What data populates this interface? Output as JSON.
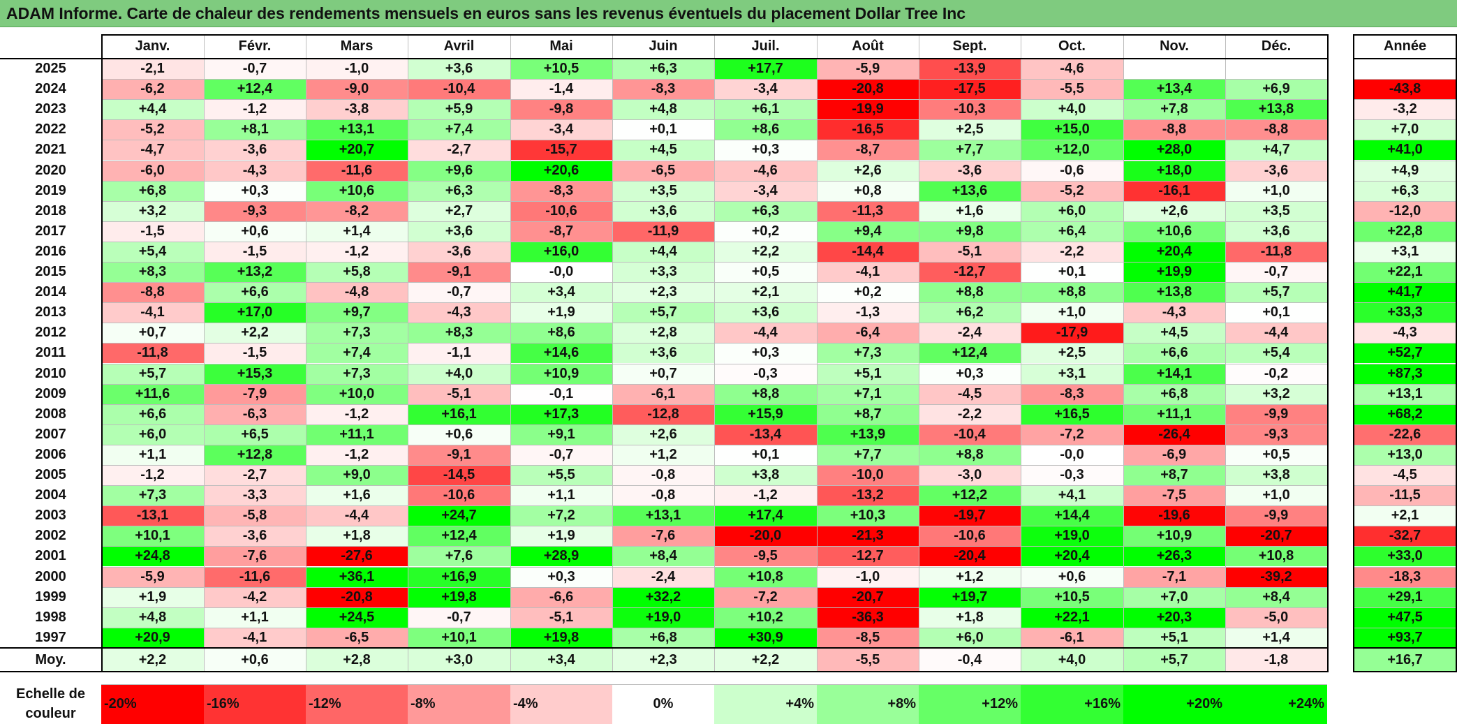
{
  "title": "ADAM Informe. Carte de chaleur des rendements mensuels en euros sans les revenus éventuels du placement Dollar Tree Inc",
  "colors": {
    "title_bg": "#7fcb7f",
    "negative": "#ff0000",
    "positive": "#00ff00",
    "neutral": "#ffffff"
  },
  "chart_data": {
    "type": "heatmap",
    "columns": [
      "Janv.",
      "Févr.",
      "Mars",
      "Avril",
      "Mai",
      "Juin",
      "Juil.",
      "Août",
      "Sept.",
      "Oct.",
      "Nov.",
      "Déc."
    ],
    "annual_header": "Année",
    "rows": [
      {
        "year": "2025",
        "values": [
          "-2,1",
          "-0,7",
          "-1,0",
          "+3,6",
          "+10,5",
          "+6,3",
          "+17,7",
          "-5,9",
          "-13,9",
          "-4,6",
          "",
          ""
        ],
        "annual": ""
      },
      {
        "year": "2024",
        "values": [
          "-6,2",
          "+12,4",
          "-9,0",
          "-10,4",
          "-1,4",
          "-8,3",
          "-3,4",
          "-20,8",
          "-17,5",
          "-5,5",
          "+13,4",
          "+6,9"
        ],
        "annual": "-43,8"
      },
      {
        "year": "2023",
        "values": [
          "+4,4",
          "-1,2",
          "-3,8",
          "+5,9",
          "-9,8",
          "+4,8",
          "+6,1",
          "-19,9",
          "-10,3",
          "+4,0",
          "+7,8",
          "+13,8"
        ],
        "annual": "-3,2"
      },
      {
        "year": "2022",
        "values": [
          "-5,2",
          "+8,1",
          "+13,1",
          "+7,4",
          "-3,4",
          "+0,1",
          "+8,6",
          "-16,5",
          "+2,5",
          "+15,0",
          "-8,8",
          "-8,8"
        ],
        "annual": "+7,0"
      },
      {
        "year": "2021",
        "values": [
          "-4,7",
          "-3,6",
          "+20,7",
          "-2,7",
          "-15,7",
          "+4,5",
          "+0,3",
          "-8,7",
          "+7,7",
          "+12,0",
          "+28,0",
          "+4,7"
        ],
        "annual": "+41,0"
      },
      {
        "year": "2020",
        "values": [
          "-6,0",
          "-4,3",
          "-11,6",
          "+9,6",
          "+20,6",
          "-6,5",
          "-4,6",
          "+2,6",
          "-3,6",
          "-0,6",
          "+18,0",
          "-3,6"
        ],
        "annual": "+4,9"
      },
      {
        "year": "2019",
        "values": [
          "+6,8",
          "+0,3",
          "+10,6",
          "+6,3",
          "-8,3",
          "+3,5",
          "-3,4",
          "+0,8",
          "+13,6",
          "-5,2",
          "-16,1",
          "+1,0"
        ],
        "annual": "+6,3"
      },
      {
        "year": "2018",
        "values": [
          "+3,2",
          "-9,3",
          "-8,2",
          "+2,7",
          "-10,6",
          "+3,6",
          "+6,3",
          "-11,3",
          "+1,6",
          "+6,0",
          "+2,6",
          "+3,5"
        ],
        "annual": "-12,0"
      },
      {
        "year": "2017",
        "values": [
          "-1,5",
          "+0,6",
          "+1,4",
          "+3,6",
          "-8,7",
          "-11,9",
          "+0,2",
          "+9,4",
          "+9,8",
          "+6,4",
          "+10,6",
          "+3,6"
        ],
        "annual": "+22,8"
      },
      {
        "year": "2016",
        "values": [
          "+5,4",
          "-1,5",
          "-1,2",
          "-3,6",
          "+16,0",
          "+4,4",
          "+2,2",
          "-14,4",
          "-5,1",
          "-2,2",
          "+20,4",
          "-11,8"
        ],
        "annual": "+3,1"
      },
      {
        "year": "2015",
        "values": [
          "+8,3",
          "+13,2",
          "+5,8",
          "-9,1",
          "-0,0",
          "+3,3",
          "+0,5",
          "-4,1",
          "-12,7",
          "+0,1",
          "+19,9",
          "-0,7"
        ],
        "annual": "+22,1"
      },
      {
        "year": "2014",
        "values": [
          "-8,8",
          "+6,6",
          "-4,8",
          "-0,7",
          "+3,4",
          "+2,3",
          "+2,1",
          "+0,2",
          "+8,8",
          "+8,8",
          "+13,8",
          "+5,7"
        ],
        "annual": "+41,7"
      },
      {
        "year": "2013",
        "values": [
          "-4,1",
          "+17,0",
          "+9,7",
          "-4,3",
          "+1,9",
          "+5,7",
          "+3,6",
          "-1,3",
          "+6,2",
          "+1,0",
          "-4,3",
          "+0,1"
        ],
        "annual": "+33,3"
      },
      {
        "year": "2012",
        "values": [
          "+0,7",
          "+2,2",
          "+7,3",
          "+8,3",
          "+8,6",
          "+2,8",
          "-4,4",
          "-6,4",
          "-2,4",
          "-17,9",
          "+4,5",
          "-4,4"
        ],
        "annual": "-4,3"
      },
      {
        "year": "2011",
        "values": [
          "-11,8",
          "-1,5",
          "+7,4",
          "-1,1",
          "+14,6",
          "+3,6",
          "+0,3",
          "+7,3",
          "+12,4",
          "+2,5",
          "+6,6",
          "+5,4"
        ],
        "annual": "+52,7"
      },
      {
        "year": "2010",
        "values": [
          "+5,7",
          "+15,3",
          "+7,3",
          "+4,0",
          "+10,9",
          "+0,7",
          "-0,3",
          "+5,1",
          "+0,3",
          "+3,1",
          "+14,1",
          "-0,2"
        ],
        "annual": "+87,3"
      },
      {
        "year": "2009",
        "values": [
          "+11,6",
          "-7,9",
          "+10,0",
          "-5,1",
          "-0,1",
          "-6,1",
          "+8,8",
          "+7,1",
          "-4,5",
          "-8,3",
          "+6,8",
          "+3,2"
        ],
        "annual": "+13,1"
      },
      {
        "year": "2008",
        "values": [
          "+6,6",
          "-6,3",
          "-1,2",
          "+16,1",
          "+17,3",
          "-12,8",
          "+15,9",
          "+8,7",
          "-2,2",
          "+16,5",
          "+11,1",
          "-9,9"
        ],
        "annual": "+68,2"
      },
      {
        "year": "2007",
        "values": [
          "+6,0",
          "+6,5",
          "+11,1",
          "+0,6",
          "+9,1",
          "+2,6",
          "-13,4",
          "+13,9",
          "-10,4",
          "-7,2",
          "-26,4",
          "-9,3"
        ],
        "annual": "-22,6"
      },
      {
        "year": "2006",
        "values": [
          "+1,1",
          "+12,8",
          "-1,2",
          "-9,1",
          "-0,7",
          "+1,2",
          "+0,1",
          "+7,7",
          "+8,8",
          "-0,0",
          "-6,9",
          "+0,5"
        ],
        "annual": "+13,0"
      },
      {
        "year": "2005",
        "values": [
          "-1,2",
          "-2,7",
          "+9,0",
          "-14,5",
          "+5,5",
          "-0,8",
          "+3,8",
          "-10,0",
          "-3,0",
          "-0,3",
          "+8,7",
          "+3,8"
        ],
        "annual": "-4,5"
      },
      {
        "year": "2004",
        "values": [
          "+7,3",
          "-3,3",
          "+1,6",
          "-10,6",
          "+1,1",
          "-0,8",
          "-1,2",
          "-13,2",
          "+12,2",
          "+4,1",
          "-7,5",
          "+1,0"
        ],
        "annual": "-11,5"
      },
      {
        "year": "2003",
        "values": [
          "-13,1",
          "-5,8",
          "-4,4",
          "+24,7",
          "+7,2",
          "+13,1",
          "+17,4",
          "+10,3",
          "-19,7",
          "+14,4",
          "-19,6",
          "-9,9"
        ],
        "annual": "+2,1"
      },
      {
        "year": "2002",
        "values": [
          "+10,1",
          "-3,6",
          "+1,8",
          "+12,4",
          "+1,9",
          "-7,6",
          "-20,0",
          "-21,3",
          "-10,6",
          "+19,0",
          "+10,9",
          "-20,7"
        ],
        "annual": "-32,7"
      },
      {
        "year": "2001",
        "values": [
          "+24,8",
          "-7,6",
          "-27,6",
          "+7,6",
          "+28,9",
          "+8,4",
          "-9,5",
          "-12,7",
          "-20,4",
          "+20,4",
          "+26,3",
          "+10,8"
        ],
        "annual": "+33,0"
      },
      {
        "year": "2000",
        "values": [
          "-5,9",
          "-11,6",
          "+36,1",
          "+16,9",
          "+0,3",
          "-2,4",
          "+10,8",
          "-1,0",
          "+1,2",
          "+0,6",
          "-7,1",
          "-39,2"
        ],
        "annual": "-18,3"
      },
      {
        "year": "1999",
        "values": [
          "+1,9",
          "-4,2",
          "-20,8",
          "+19,8",
          "-6,6",
          "+32,2",
          "-7,2",
          "-20,7",
          "+19,7",
          "+10,5",
          "+7,0",
          "+8,4"
        ],
        "annual": "+29,1"
      },
      {
        "year": "1998",
        "values": [
          "+4,8",
          "+1,1",
          "+24,5",
          "-0,7",
          "-5,1",
          "+19,0",
          "+10,2",
          "-36,3",
          "+1,8",
          "+22,1",
          "+20,3",
          "-5,0"
        ],
        "annual": "+47,5"
      },
      {
        "year": "1997",
        "values": [
          "+20,9",
          "-4,1",
          "-6,5",
          "+10,1",
          "+19,8",
          "+6,8",
          "+30,9",
          "-8,5",
          "+6,0",
          "-6,1",
          "+5,1",
          "+1,4"
        ],
        "annual": "+93,7"
      }
    ],
    "average": {
      "label": "Moy.",
      "values": [
        "+2,2",
        "+0,6",
        "+2,8",
        "+3,0",
        "+3,4",
        "+2,3",
        "+2,2",
        "-5,5",
        "-0,4",
        "+4,0",
        "+5,7",
        "-1,8"
      ],
      "annual": "+16,7"
    },
    "color_scale": {
      "label_line1": "Echelle de",
      "label_line2": "couleur",
      "steps": [
        "-20%",
        "-16%",
        "-12%",
        "-8%",
        "-4%",
        "0%",
        "+4%",
        "+8%",
        "+12%",
        "+16%",
        "+20%",
        "+24%"
      ]
    }
  }
}
